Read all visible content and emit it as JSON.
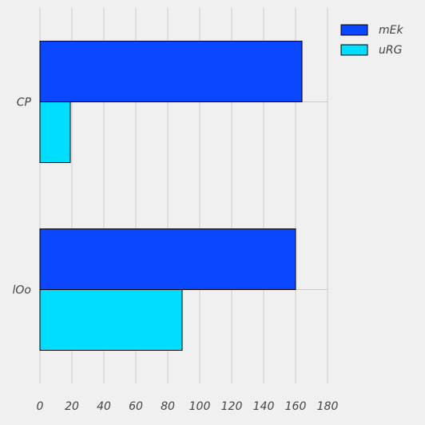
{
  "chart_data": {
    "type": "bar",
    "orientation": "horizontal",
    "title": "",
    "xlabel": "",
    "ylabel": "",
    "categories": [
      "CP",
      "lOo"
    ],
    "series": [
      {
        "name": "mEk",
        "color": "#0a47ff",
        "values": [
          164,
          160
        ]
      },
      {
        "name": "uRG",
        "color": "#00ddff",
        "values": [
          19,
          89
        ]
      }
    ],
    "xlim": [
      0,
      180
    ],
    "xticks": [
      0,
      20,
      40,
      60,
      80,
      100,
      120,
      140,
      160,
      180
    ],
    "grid": true,
    "legend_position": "top-right"
  }
}
